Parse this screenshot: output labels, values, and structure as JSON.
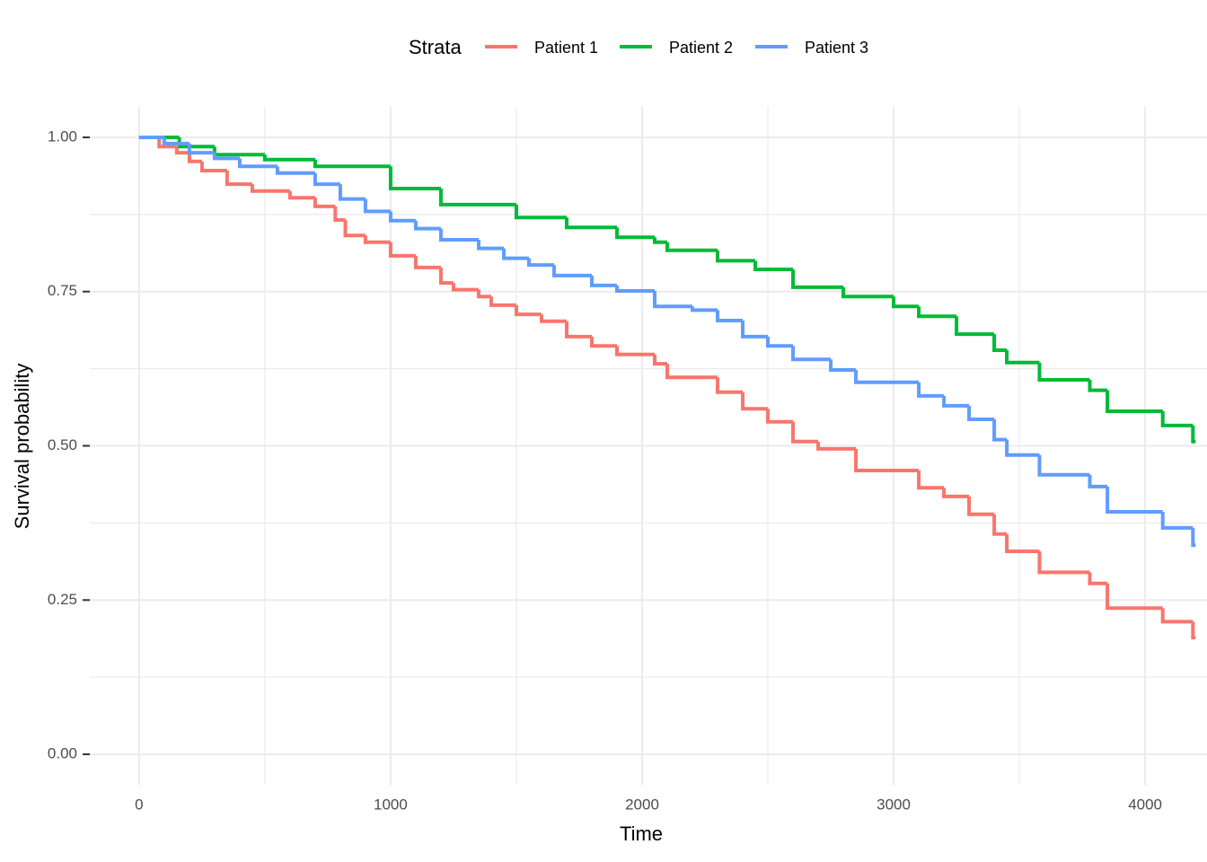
{
  "chart_data": {
    "type": "step",
    "x_label": "Time",
    "y_label": "Survival probability",
    "legend_title": "Strata",
    "legend_position": "top",
    "grid": true,
    "xlim": [
      -196,
      4246
    ],
    "ylim": [
      -0.05,
      1.05
    ],
    "xticks": [
      0,
      1000,
      2000,
      3000,
      4000
    ],
    "yticks": [
      {
        "value": 0,
        "label": "0.00"
      },
      {
        "value": 0.25,
        "label": "0.25"
      },
      {
        "value": 0.5,
        "label": "0.50"
      },
      {
        "value": 0.75,
        "label": "0.75"
      },
      {
        "value": 1,
        "label": "1.00"
      }
    ],
    "x_minor_grid": [
      500,
      1500,
      2500,
      3500
    ],
    "y_minor_grid": [
      0.125,
      0.375,
      0.625,
      0.875
    ],
    "series": [
      {
        "name": "Patient 1",
        "color": "#F8766D",
        "x": [
          0,
          80,
          150,
          200,
          250,
          350,
          450,
          600,
          700,
          780,
          820,
          900,
          1000,
          1100,
          1200,
          1250,
          1350,
          1400,
          1500,
          1600,
          1700,
          1800,
          1900,
          2050,
          2100,
          2300,
          2400,
          2500,
          2600,
          2700,
          2850,
          3100,
          3200,
          3300,
          3400,
          3450,
          3580,
          3780,
          3850,
          4070,
          4190
        ],
        "values": [
          1.0,
          0.985,
          0.975,
          0.961,
          0.946,
          0.924,
          0.913,
          0.902,
          0.888,
          0.866,
          0.841,
          0.83,
          0.808,
          0.789,
          0.764,
          0.753,
          0.742,
          0.728,
          0.713,
          0.702,
          0.677,
          0.662,
          0.648,
          0.633,
          0.611,
          0.587,
          0.56,
          0.539,
          0.507,
          0.495,
          0.46,
          0.432,
          0.418,
          0.389,
          0.357,
          0.329,
          0.295,
          0.277,
          0.237,
          0.215,
          0.189
        ]
      },
      {
        "name": "Patient 2",
        "color": "#00BA38",
        "x": [
          0,
          160,
          300,
          500,
          700,
          1000,
          1200,
          1500,
          1700,
          1900,
          2050,
          2100,
          2300,
          2450,
          2600,
          2800,
          3000,
          3100,
          3250,
          3400,
          3450,
          3580,
          3780,
          3850,
          4070,
          4190
        ],
        "values": [
          1.0,
          0.985,
          0.972,
          0.964,
          0.953,
          0.917,
          0.891,
          0.87,
          0.854,
          0.838,
          0.83,
          0.817,
          0.8,
          0.786,
          0.757,
          0.742,
          0.726,
          0.71,
          0.681,
          0.655,
          0.635,
          0.607,
          0.59,
          0.556,
          0.533,
          0.507
        ]
      },
      {
        "name": "Patient 3",
        "color": "#619CFF",
        "x": [
          0,
          100,
          200,
          300,
          400,
          550,
          700,
          800,
          900,
          1000,
          1100,
          1200,
          1350,
          1450,
          1550,
          1650,
          1800,
          1900,
          2050,
          2200,
          2300,
          2400,
          2500,
          2600,
          2750,
          2850,
          3100,
          3200,
          3300,
          3400,
          3450,
          3580,
          3780,
          3850,
          4070,
          4190
        ],
        "values": [
          1.0,
          0.99,
          0.975,
          0.966,
          0.953,
          0.942,
          0.924,
          0.9,
          0.88,
          0.865,
          0.852,
          0.834,
          0.82,
          0.804,
          0.793,
          0.776,
          0.76,
          0.751,
          0.726,
          0.72,
          0.703,
          0.677,
          0.662,
          0.64,
          0.623,
          0.603,
          0.581,
          0.565,
          0.543,
          0.51,
          0.485,
          0.453,
          0.434,
          0.393,
          0.367,
          0.339
        ]
      }
    ]
  }
}
